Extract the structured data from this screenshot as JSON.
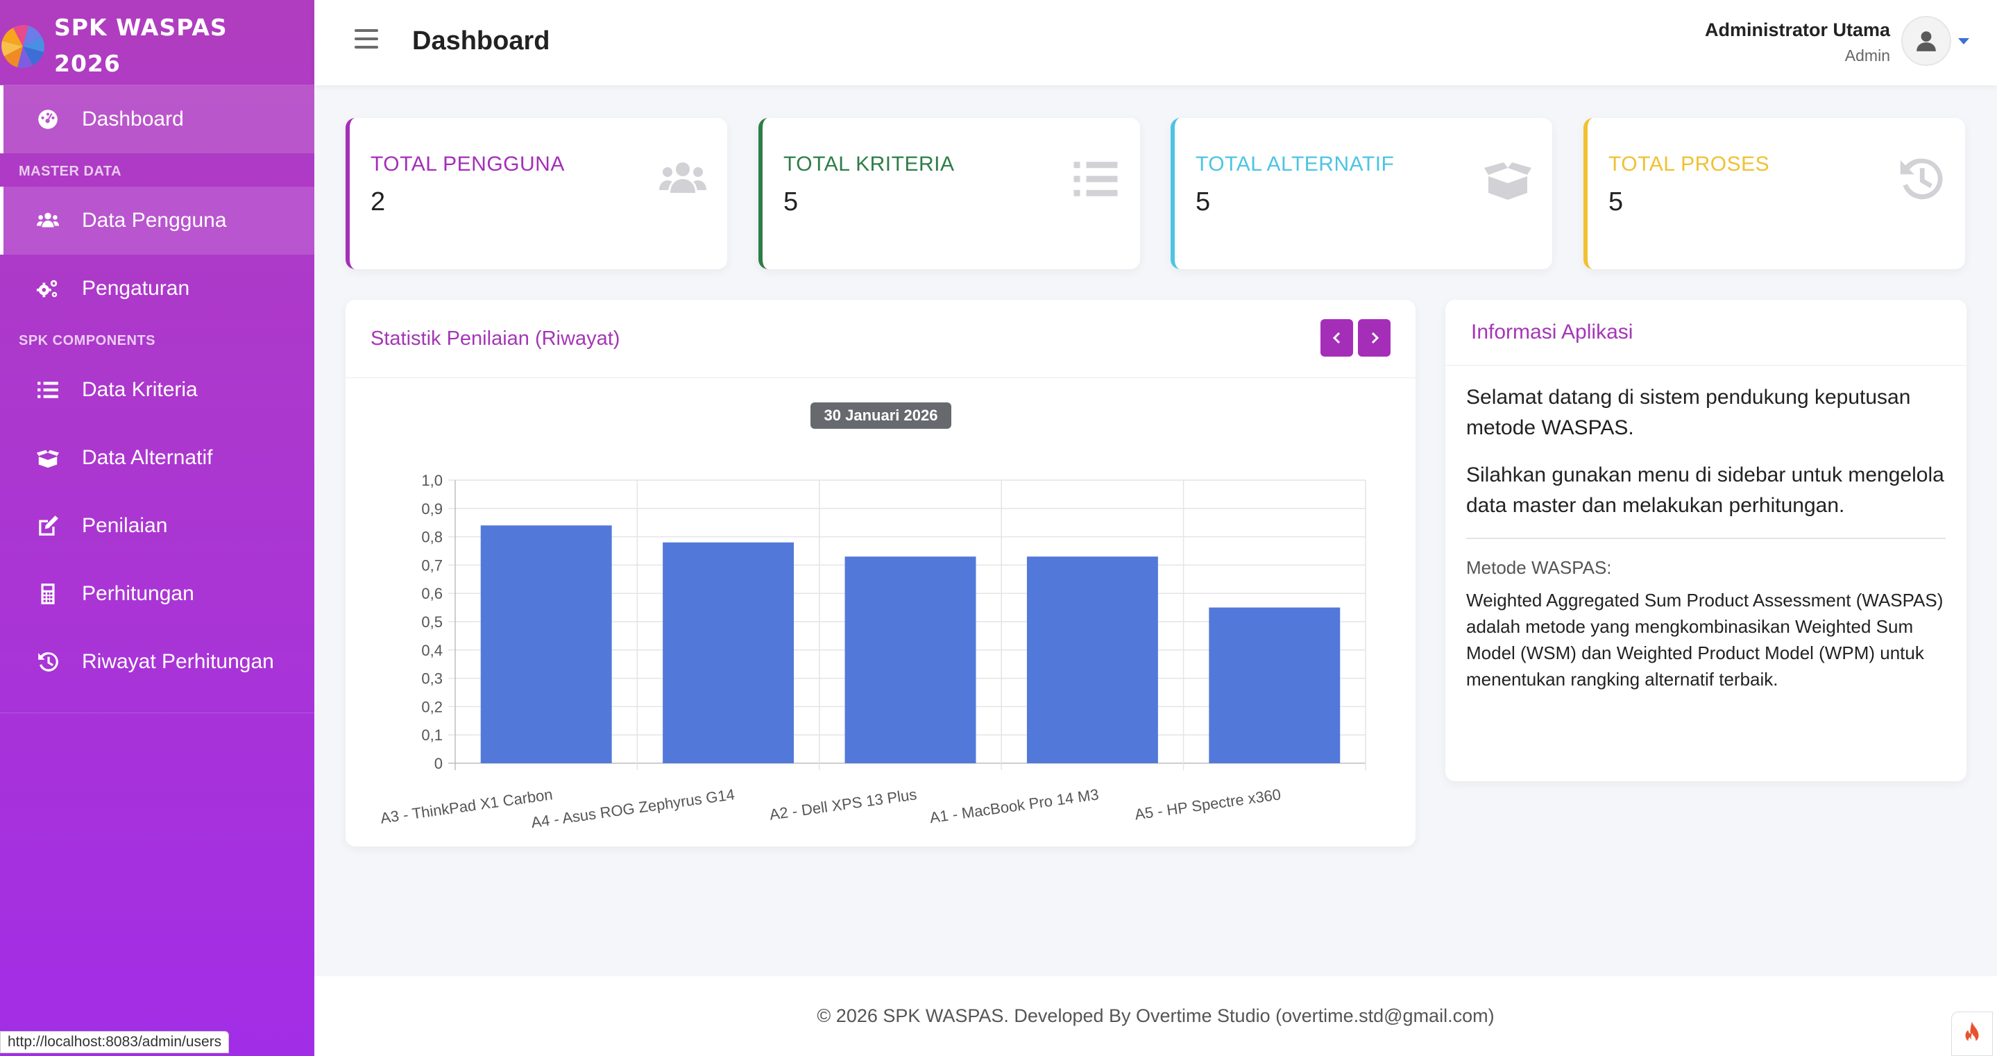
{
  "app": {
    "brand_line1": "SPK WASPAS",
    "brand_line2": "2026",
    "logo_icon": "brand-pinwheel-logo"
  },
  "sidebar": {
    "items": [
      {
        "label": "Dashboard",
        "icon": "tachometer-icon",
        "active": true
      },
      {
        "label": "Data Pengguna",
        "icon": "users-icon",
        "active": true
      },
      {
        "label": "Pengaturan",
        "icon": "cogs-icon"
      },
      {
        "label": "Data Kriteria",
        "icon": "list-icon"
      },
      {
        "label": "Data Alternatif",
        "icon": "box-open-icon"
      },
      {
        "label": "Penilaian",
        "icon": "edit-icon"
      },
      {
        "label": "Perhitungan",
        "icon": "calculator-icon"
      },
      {
        "label": "Riwayat Perhitungan",
        "icon": "history-icon"
      }
    ],
    "section_master": "MASTER DATA",
    "section_spk": "SPK COMPONENTS"
  },
  "topbar": {
    "title": "Dashboard",
    "user_name": "Administrator Utama",
    "user_role": "Admin"
  },
  "stats": [
    {
      "label": "TOTAL PENGGUNA",
      "value": "2",
      "color": "#a52eb9",
      "icon": "users-icon"
    },
    {
      "label": "TOTAL KRITERIA",
      "value": "5",
      "color": "#2e7d47",
      "icon": "list-icon"
    },
    {
      "label": "TOTAL ALTERNATIF",
      "value": "5",
      "color": "#4cc4e4",
      "icon": "box-open-icon"
    },
    {
      "label": "TOTAL PROSES",
      "value": "5",
      "color": "#f0c132",
      "icon": "history-icon"
    }
  ],
  "chart_card": {
    "title": "Statistik Penilaian (Riwayat)",
    "date": "30 Januari 2026"
  },
  "chart_data": {
    "type": "bar",
    "categories": [
      "A3 - ThinkPad X1 Carbon",
      "A4 - Asus ROG Zephyrus G14",
      "A2 - Dell XPS 13 Plus",
      "A1 - MacBook Pro 14 M3",
      "A5 - HP Spectre x360"
    ],
    "values": [
      0.84,
      0.78,
      0.73,
      0.73,
      0.55
    ],
    "ylim": [
      0,
      1.0
    ],
    "yticks": [
      "0",
      "0,1",
      "0,2",
      "0,3",
      "0,4",
      "0,5",
      "0,6",
      "0,7",
      "0,8",
      "0,9",
      "1,0"
    ],
    "bar_color": "#5278d9",
    "grid": true
  },
  "info": {
    "title": "Informasi Aplikasi",
    "p1": "Selamat datang di sistem pendukung keputusan metode WASPAS.",
    "p2": "Silahkan gunakan menu di sidebar untuk mengelola data master dan melakukan perhitungan.",
    "method_label": "Metode WASPAS:",
    "method_desc": "Weighted Aggregated Sum Product Assessment (WASPAS) adalah metode yang mengkombinasikan Weighted Sum Model (WSM) dan Weighted Product Model (WPM) untuk menentukan rangking alternatif terbaik."
  },
  "footer": {
    "text": "© 2026 SPK WASPAS. Developed By Overtime Studio (overtime.std@gmail.com)"
  },
  "status_bar": {
    "url": "http://localhost:8083/admin/users"
  }
}
